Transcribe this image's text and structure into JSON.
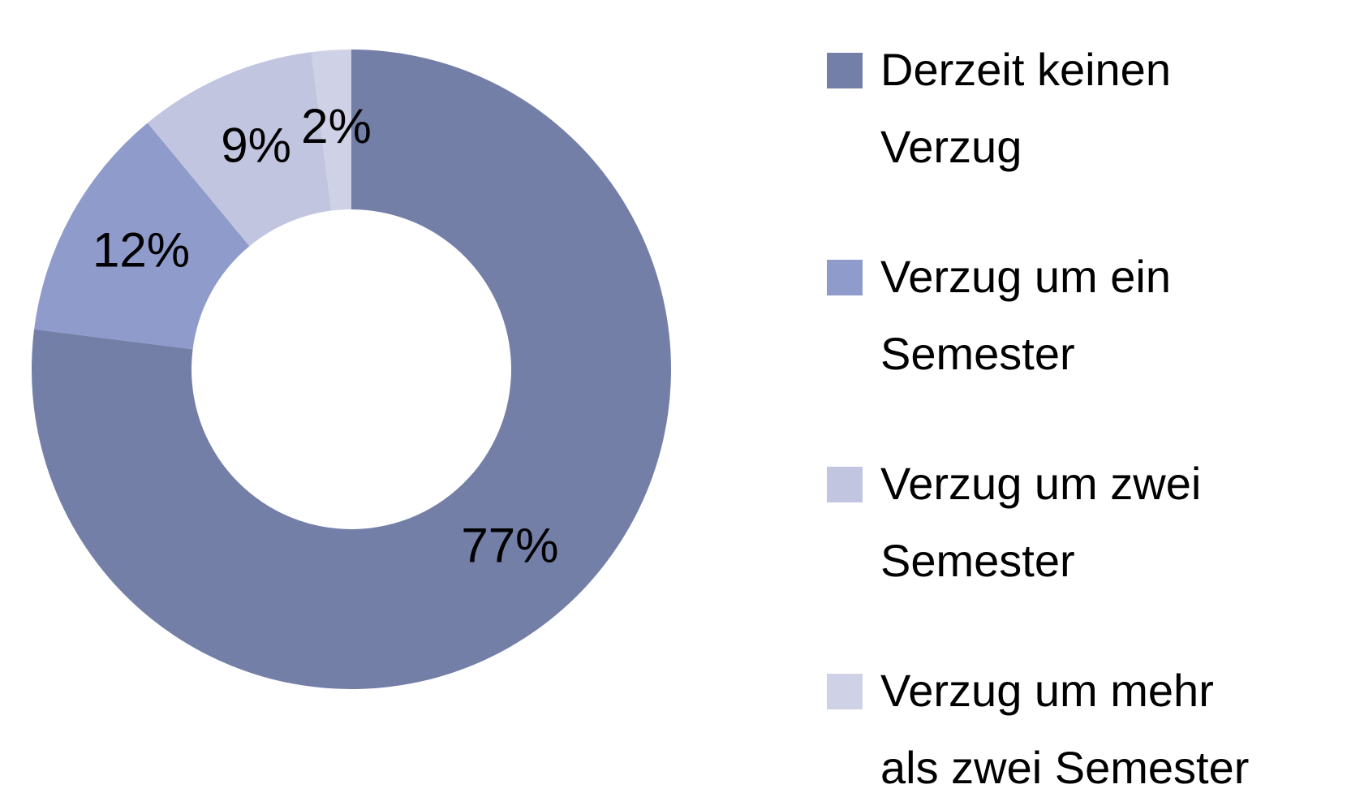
{
  "chart_data": {
    "type": "donut",
    "categories": [
      "Derzeit keinen Verzug",
      "Verzug um ein Semester",
      "Verzug um zwei Semester",
      "Verzug um mehr als zwei Semester"
    ],
    "values": [
      77,
      12,
      9,
      2
    ],
    "value_labels": [
      "77%",
      "12%",
      "9%",
      "2%"
    ],
    "colors": [
      "#747fa8",
      "#8f9bcb",
      "#c1c5df",
      "#cfd2e6"
    ],
    "legend": "right"
  }
}
